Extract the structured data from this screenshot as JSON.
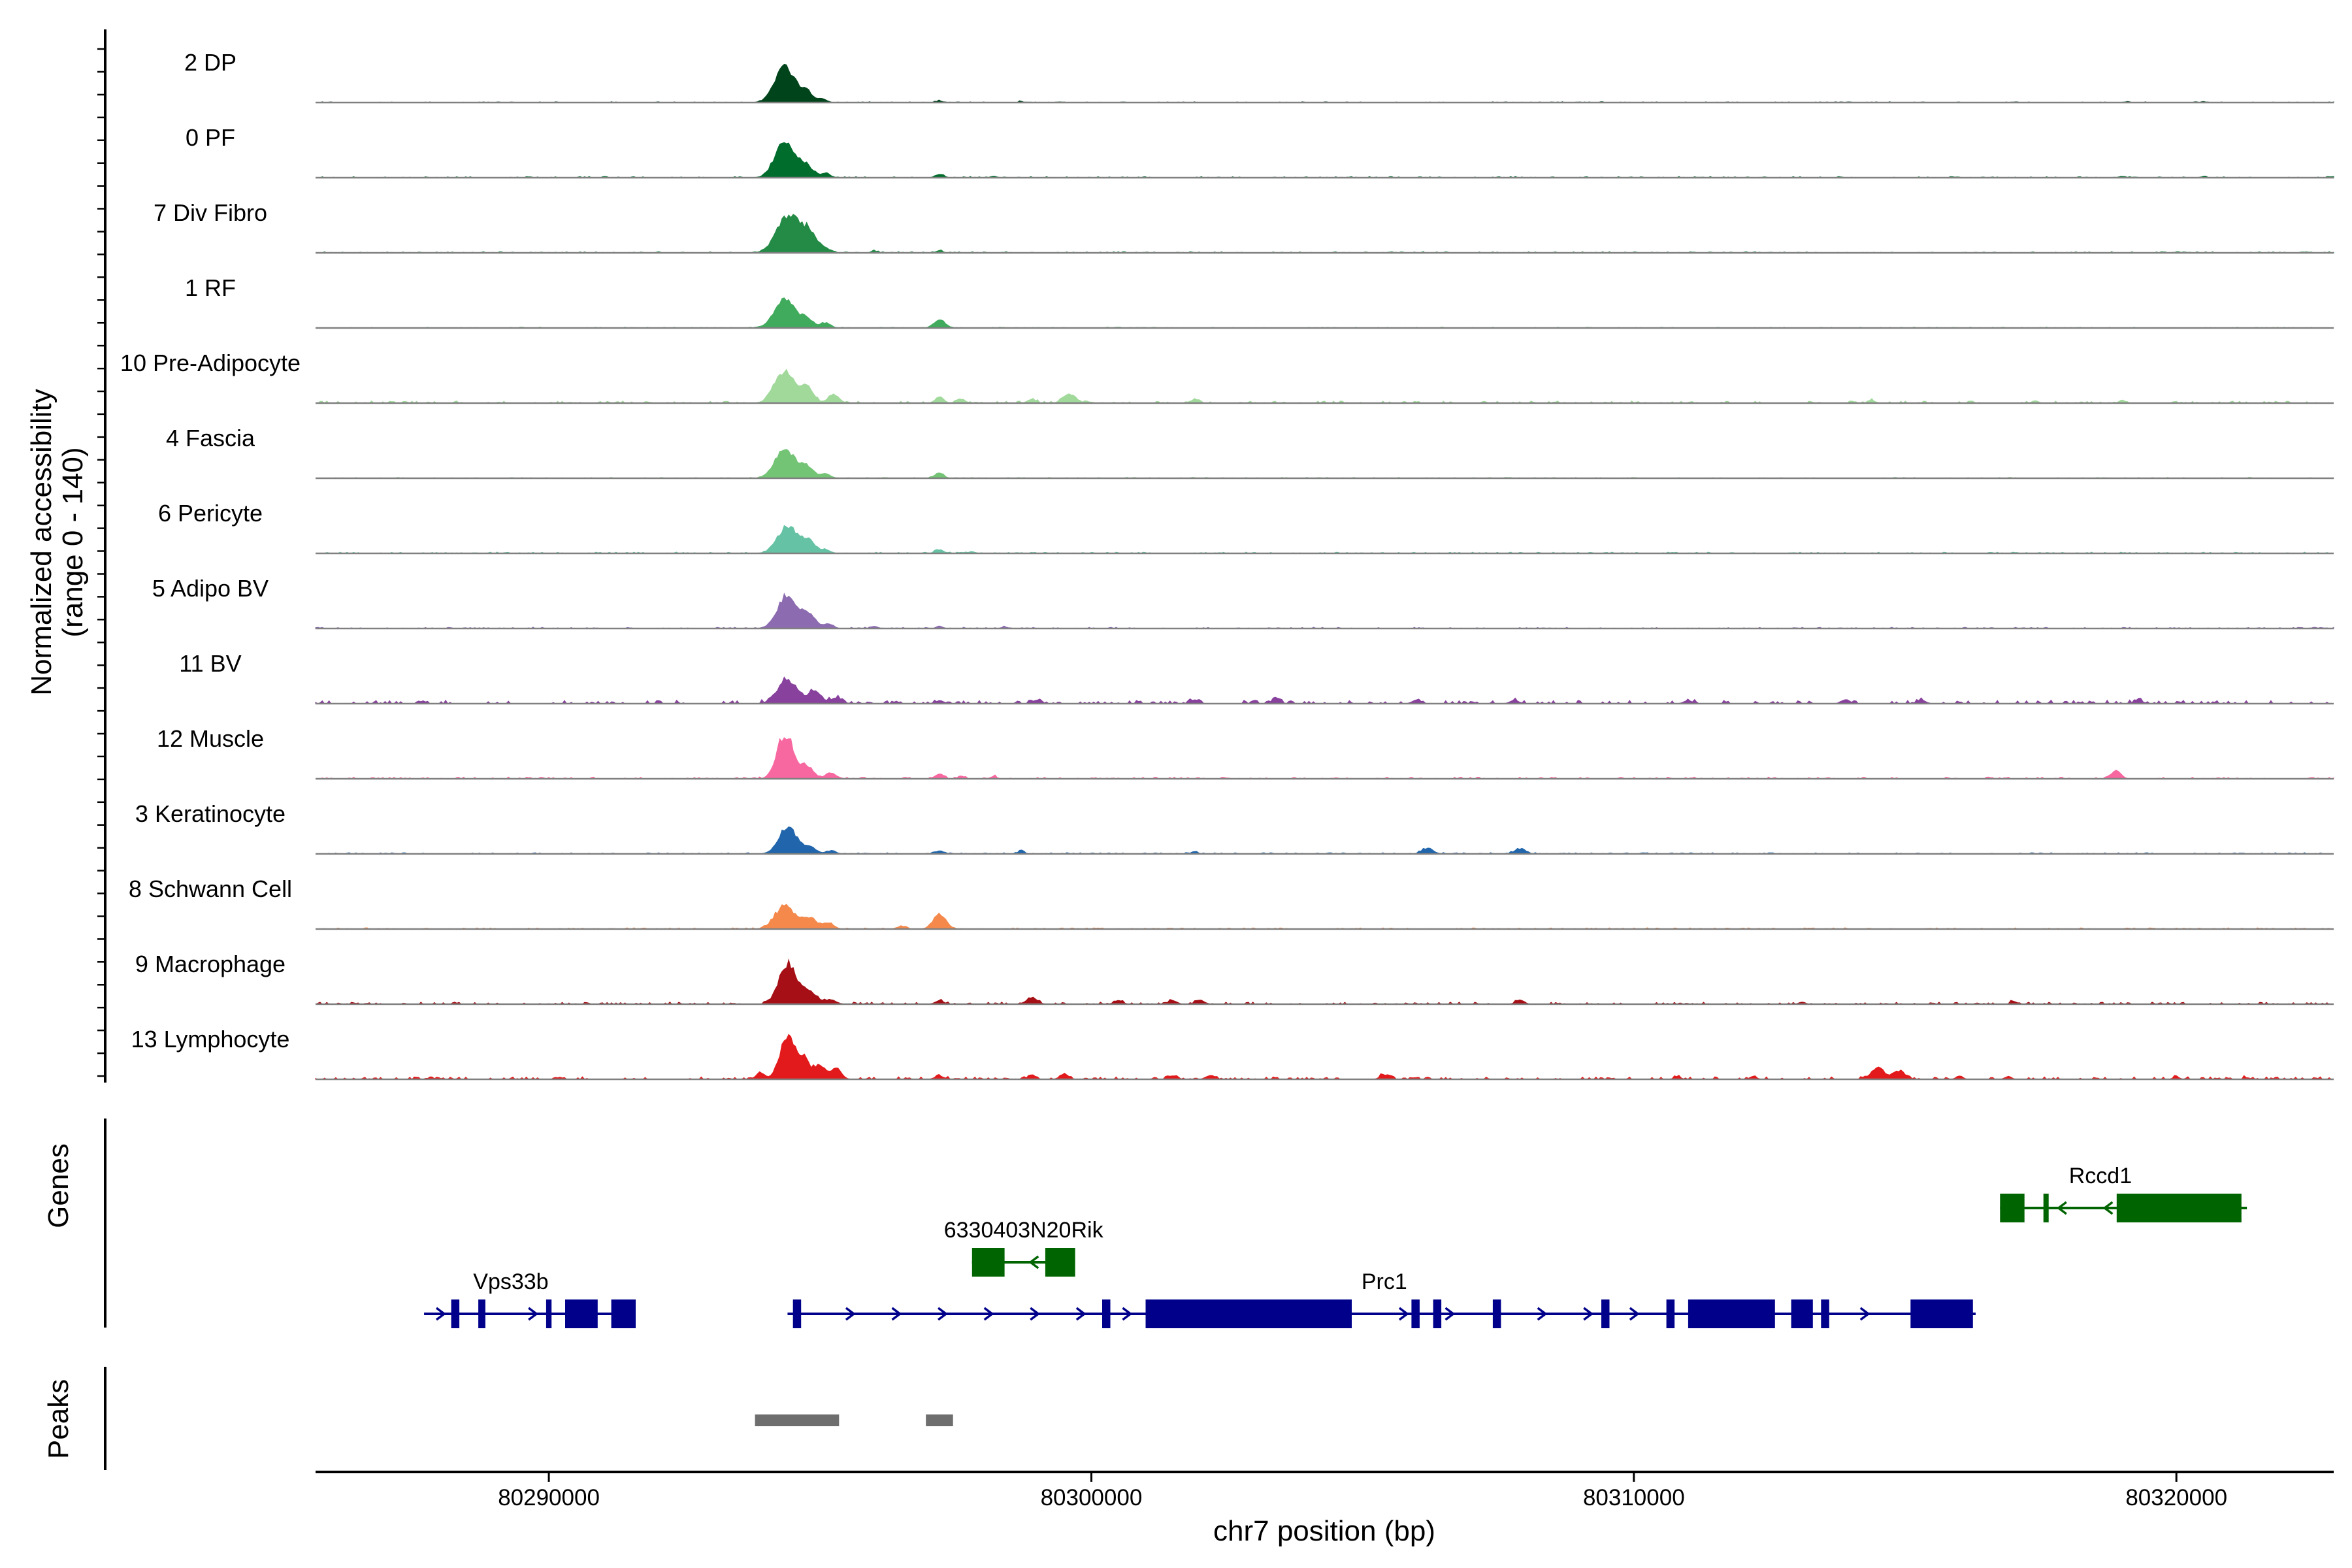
{
  "chart_data": {
    "type": "area",
    "title": "",
    "ylabel_line1": "Normalized accessibility",
    "ylabel_line2": "(range 0 - 140)",
    "xlabel": "chr7 position (bp)",
    "ylim": [
      0,
      140
    ],
    "xlim": [
      80285700,
      80322900
    ],
    "xticks": [
      80290000,
      80300000,
      80310000,
      80320000
    ],
    "xtick_labels": [
      "80290000",
      "80300000",
      "80310000",
      "80320000"
    ],
    "panel_labels": {
      "genes": "Genes",
      "peaks": "Peaks"
    },
    "tracks": [
      {
        "name": "2 DP",
        "color": "#00441b",
        "peaks": [
          [
            80294350,
            125,
            180
          ],
          [
            80294750,
            38,
            120
          ],
          [
            80295050,
            12,
            80
          ],
          [
            80297200,
            6,
            60
          ],
          [
            80298700,
            5,
            40
          ],
          [
            80319100,
            4,
            40
          ],
          [
            80320500,
            4,
            40
          ]
        ],
        "noise": 2
      },
      {
        "name": "0 PF",
        "color": "#006d2c",
        "peaks": [
          [
            80294350,
            120,
            180
          ],
          [
            80294750,
            40,
            120
          ],
          [
            80295100,
            15,
            90
          ],
          [
            80297200,
            12,
            80
          ],
          [
            80298200,
            5,
            60
          ],
          [
            80319000,
            5,
            60
          ],
          [
            80320500,
            4,
            60
          ]
        ],
        "noise": 3
      },
      {
        "name": "7 Div Fibro",
        "color": "#238b45",
        "peaks": [
          [
            80294400,
            130,
            200
          ],
          [
            80294800,
            70,
            150
          ],
          [
            80295100,
            10,
            80
          ],
          [
            80296000,
            6,
            60
          ],
          [
            80297200,
            8,
            60
          ]
        ],
        "noise": 3
      },
      {
        "name": "1 RF",
        "color": "#41ab5d",
        "peaks": [
          [
            80294350,
            105,
            180
          ],
          [
            80294750,
            30,
            120
          ],
          [
            80295100,
            18,
            90
          ],
          [
            80297200,
            30,
            100
          ]
        ],
        "noise": 2
      },
      {
        "name": "10 Pre-Adipocyte",
        "color": "#a1d99b",
        "peaks": [
          [
            80294350,
            110,
            180
          ],
          [
            80294750,
            55,
            120
          ],
          [
            80295250,
            30,
            100
          ],
          [
            80297200,
            20,
            80
          ],
          [
            80297600,
            12,
            80
          ],
          [
            80298900,
            12,
            80
          ],
          [
            80299600,
            30,
            120
          ],
          [
            80301900,
            12,
            80
          ],
          [
            80314400,
            8,
            60
          ],
          [
            80317400,
            8,
            60
          ],
          [
            80319000,
            10,
            60
          ]
        ],
        "noise": 5
      },
      {
        "name": "4 Fascia",
        "color": "#74c476",
        "peaks": [
          [
            80294350,
            100,
            180
          ],
          [
            80294750,
            40,
            120
          ],
          [
            80295100,
            15,
            90
          ],
          [
            80297200,
            18,
            80
          ]
        ],
        "noise": 2
      },
      {
        "name": "6 Pericyte",
        "color": "#66c2a4",
        "peaks": [
          [
            80294400,
            95,
            180
          ],
          [
            80294800,
            40,
            120
          ],
          [
            80295100,
            12,
            90
          ],
          [
            80297200,
            12,
            80
          ],
          [
            80297800,
            6,
            60
          ]
        ],
        "noise": 3
      },
      {
        "name": "5 Adipo BV",
        "color": "#8c6bb1",
        "peaks": [
          [
            80294400,
            115,
            180
          ],
          [
            80294800,
            45,
            120
          ],
          [
            80295150,
            15,
            90
          ],
          [
            80296000,
            8,
            60
          ],
          [
            80297200,
            8,
            60
          ],
          [
            80298400,
            6,
            60
          ]
        ],
        "noise": 3
      },
      {
        "name": "11 BV",
        "color": "#88419d",
        "peaks": [
          [
            80294400,
            80,
            180
          ],
          [
            80294900,
            40,
            120
          ],
          [
            80295300,
            20,
            100
          ],
          [
            80297200,
            10,
            80
          ],
          [
            80299000,
            12,
            80
          ],
          [
            80301900,
            14,
            80
          ],
          [
            80303400,
            14,
            80
          ],
          [
            80306000,
            14,
            80
          ],
          [
            80307800,
            12,
            80
          ],
          [
            80311000,
            10,
            80
          ],
          [
            80313900,
            14,
            80
          ],
          [
            80315300,
            12,
            80
          ],
          [
            80319300,
            10,
            80
          ]
        ],
        "noise": 8
      },
      {
        "name": "12 Muscle",
        "color": "#f768a1",
        "peaks": [
          [
            80294350,
            170,
            140
          ],
          [
            80294750,
            45,
            120
          ],
          [
            80295200,
            20,
            100
          ],
          [
            80297200,
            18,
            80
          ],
          [
            80297600,
            10,
            60
          ],
          [
            80298200,
            8,
            60
          ],
          [
            80318900,
            30,
            80
          ]
        ],
        "noise": 4
      },
      {
        "name": "3 Keratinocyte",
        "color": "#2166ac",
        "peaks": [
          [
            80294400,
            95,
            160
          ],
          [
            80294800,
            25,
            120
          ],
          [
            80295200,
            10,
            90
          ],
          [
            80297200,
            10,
            80
          ],
          [
            80298700,
            10,
            60
          ],
          [
            80301900,
            8,
            60
          ],
          [
            80306200,
            20,
            100
          ],
          [
            80307900,
            18,
            100
          ]
        ],
        "noise": 3
      },
      {
        "name": "8 Schwann Cell",
        "color": "#f4894b",
        "peaks": [
          [
            80294350,
            80,
            180
          ],
          [
            80294800,
            35,
            140
          ],
          [
            80295150,
            20,
            100
          ],
          [
            80297200,
            48,
            120
          ],
          [
            80296500,
            10,
            80
          ]
        ],
        "noise": 3
      },
      {
        "name": "9 Macrophage",
        "color": "#a50f15",
        "peaks": [
          [
            80294400,
            140,
            160
          ],
          [
            80294800,
            40,
            140
          ],
          [
            80295200,
            15,
            100
          ],
          [
            80297200,
            12,
            80
          ],
          [
            80298900,
            22,
            100
          ],
          [
            80300500,
            12,
            80
          ],
          [
            80301500,
            12,
            80
          ],
          [
            80302000,
            15,
            80
          ],
          [
            80307900,
            14,
            80
          ],
          [
            80313100,
            8,
            60
          ],
          [
            80317000,
            10,
            60
          ]
        ],
        "noise": 5
      },
      {
        "name": "13 Lymphocyte",
        "color": "#e31a1c",
        "peaks": [
          [
            80293900,
            22,
            80
          ],
          [
            80294400,
            145,
            140
          ],
          [
            80294700,
            70,
            100
          ],
          [
            80295000,
            50,
            100
          ],
          [
            80295300,
            40,
            90
          ],
          [
            80297200,
            12,
            80
          ],
          [
            80298900,
            10,
            80
          ],
          [
            80299500,
            18,
            80
          ],
          [
            80301500,
            12,
            80
          ],
          [
            80302200,
            15,
            80
          ],
          [
            80305400,
            14,
            80
          ],
          [
            80310800,
            10,
            60
          ],
          [
            80312200,
            10,
            60
          ],
          [
            80314500,
            40,
            120
          ],
          [
            80314900,
            30,
            100
          ],
          [
            80316000,
            12,
            60
          ],
          [
            80316900,
            10,
            60
          ],
          [
            80320000,
            8,
            60
          ],
          [
            80321300,
            6,
            60
          ]
        ],
        "noise": 6
      }
    ],
    "genes": [
      {
        "name": "Vps33b",
        "strand": "+",
        "color": "#00008b",
        "start": 80287700,
        "end": 80291600,
        "label_x": 80289300,
        "row": 2,
        "exons": [
          [
            80288200,
            80288350
          ],
          [
            80288700,
            80288830
          ],
          [
            80289950,
            80290050
          ],
          [
            80290300,
            80290900
          ],
          [
            80291150,
            80291600
          ]
        ]
      },
      {
        "name": "Prc1",
        "strand": "+",
        "color": "#00008b",
        "start": 80294400,
        "end": 80316300,
        "label_x": 80305400,
        "row": 2,
        "exons": [
          [
            80294500,
            80294650
          ],
          [
            80300200,
            80300350
          ],
          [
            80301000,
            80304800
          ],
          [
            80305900,
            80306050
          ],
          [
            80306300,
            80306450
          ],
          [
            80307400,
            80307550
          ],
          [
            80309400,
            80309550
          ],
          [
            80310600,
            80310750
          ],
          [
            80311000,
            80312600
          ],
          [
            80312900,
            80313300
          ],
          [
            80313450,
            80313600
          ],
          [
            80315100,
            80316250
          ]
        ]
      },
      {
        "name": "6330403N20Rik",
        "strand": "-",
        "color": "#006400",
        "start": 80297800,
        "end": 80299700,
        "label_x": 80298750,
        "row": 1,
        "exons": [
          [
            80297800,
            80298400
          ],
          [
            80299150,
            80299700
          ]
        ]
      },
      {
        "name": "Rccd1",
        "strand": "-",
        "color": "#006400",
        "start": 80316750,
        "end": 80321300,
        "label_x": 80318600,
        "row": 0,
        "exons": [
          [
            80316750,
            80317200
          ],
          [
            80317550,
            80317600
          ],
          [
            80318900,
            80321200
          ]
        ]
      }
    ],
    "peaks_track": [
      [
        80293800,
        80295350
      ],
      [
        80296950,
        80297450
      ]
    ]
  }
}
